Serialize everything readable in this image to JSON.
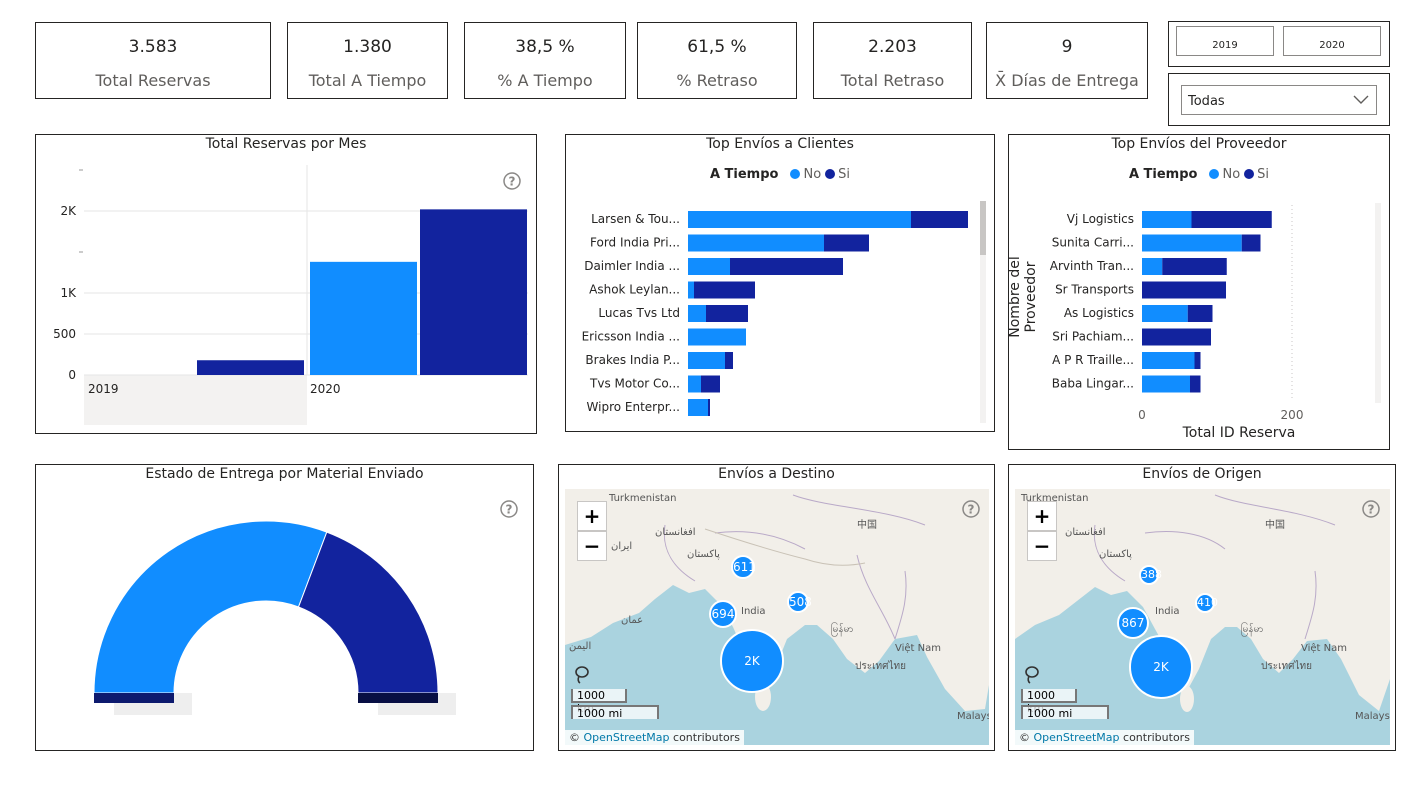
{
  "kpis": [
    {
      "value": "3.583",
      "label": "Total Reservas"
    },
    {
      "value": "1.380",
      "label": "Total A Tiempo"
    },
    {
      "value": "38,5 %",
      "label": "% A Tiempo"
    },
    {
      "value": "61,5 %",
      "label": "% Retraso"
    },
    {
      "value": "2.203",
      "label": "Total Retraso"
    },
    {
      "value": "9",
      "label": "X̄ Días de Entrega"
    }
  ],
  "year_slicer": {
    "options": [
      "2019",
      "2020"
    ]
  },
  "dropdown": {
    "value": "Todas"
  },
  "colors": {
    "no": "#118dff",
    "si": "#12239e",
    "border": "#252423"
  },
  "monthly_chart": {
    "title": "Total Reservas por Mes",
    "chart_data": {
      "type": "bar",
      "title": "Total Reservas por Mes",
      "groups": [
        "2019",
        "2020"
      ],
      "series": [
        {
          "name": "2019 bar",
          "values": [
            180
          ]
        },
        {
          "name": "2020 bars",
          "values": [
            1380,
            2020
          ]
        }
      ],
      "ytick_labels": [
        "0",
        "500",
        "1K",
        "2K"
      ],
      "ylim": [
        0,
        2500
      ]
    }
  },
  "clients_chart": {
    "title": "Top Envíos a Clientes",
    "legend": {
      "title": "A Tiempo",
      "no": "No",
      "si": "Si"
    },
    "chart_data": {
      "type": "bar",
      "orientation": "horizontal",
      "categories": [
        "Larsen & Tou...",
        "Ford India Pri...",
        "Daimler India ...",
        "Ashok Leylan...",
        "Lucas Tvs Ltd",
        "Ericsson India ...",
        "Brakes India P...",
        "Tvs Motor Co...",
        "Wipro Enterpr..."
      ],
      "series": [
        {
          "name": "No",
          "values": [
            223,
            136,
            42,
            6,
            18,
            58,
            37,
            13,
            20
          ]
        },
        {
          "name": "Si",
          "values": [
            57,
            45,
            113,
            61,
            42,
            0,
            8,
            19,
            2
          ]
        }
      ],
      "xlim": [
        0,
        280
      ]
    }
  },
  "supplier_chart": {
    "title": "Top Envíos del Proveedor",
    "legend": {
      "title": "A Tiempo",
      "no": "No",
      "si": "Si"
    },
    "ylabel": "Nombre del Proveedor",
    "xlabel": "Total ID Reserva",
    "xtick_labels": [
      "0",
      "200"
    ],
    "chart_data": {
      "type": "bar",
      "orientation": "horizontal",
      "categories": [
        "Vj Logistics",
        "Sunita Carri...",
        "Arvinth Tran...",
        "Sr Transports",
        "As Logistics",
        "Sri Pachiam...",
        "A P R Traille...",
        "Baba Lingar..."
      ],
      "series": [
        {
          "name": "No",
          "values": [
            66,
            133,
            27,
            0,
            61,
            0,
            70,
            64
          ]
        },
        {
          "name": "Si",
          "values": [
            107,
            25,
            86,
            112,
            33,
            92,
            8,
            14
          ]
        }
      ],
      "xlim": [
        0,
        200
      ]
    }
  },
  "gauge_chart": {
    "title": "Estado de Entrega por Material Enviado",
    "chart_data": {
      "type": "pie",
      "style": "half-donut",
      "labels": [
        "No",
        "Si"
      ],
      "values": [
        61.5,
        38.5
      ]
    }
  },
  "dest_map": {
    "title": "Envíos a Destino",
    "zoom_in": "+",
    "zoom_out": "−",
    "scale_km": "1000 km",
    "scale_mi": "1000 mi",
    "attrib_prefix": "©",
    "attrib_link": "OpenStreetMap",
    "attrib_suffix": "contributors",
    "labels": [
      "Turkmenistan",
      "中国",
      "افغانستان",
      "ایران",
      "پاکستان",
      "India",
      "عمان",
      "اليمن",
      "မြန်မာ",
      "Việt Nam",
      "ประเทศไทย",
      "Malays"
    ],
    "bubbles": [
      {
        "label": "611",
        "value": 611
      },
      {
        "label": "694",
        "value": 694
      },
      {
        "label": "508",
        "value": 508
      },
      {
        "label": "2K",
        "value": 1770
      }
    ]
  },
  "origin_map": {
    "title": "Envíos de Origen",
    "zoom_in": "+",
    "zoom_out": "−",
    "scale_km": "1000 km",
    "scale_mi": "1000 mi",
    "attrib_prefix": "©",
    "attrib_link": "OpenStreetMap",
    "attrib_suffix": "contributors",
    "labels": [
      "Turkmenistan",
      "中国",
      "افغانستان",
      "پاکستان",
      "India",
      "မြန်မာ",
      "Việt Nam",
      "ประเทศไทย",
      "Malays"
    ],
    "bubbles": [
      {
        "label": "388",
        "value": 388
      },
      {
        "label": "410",
        "value": 410
      },
      {
        "label": "867",
        "value": 867
      },
      {
        "label": "2K",
        "value": 1918
      }
    ]
  }
}
